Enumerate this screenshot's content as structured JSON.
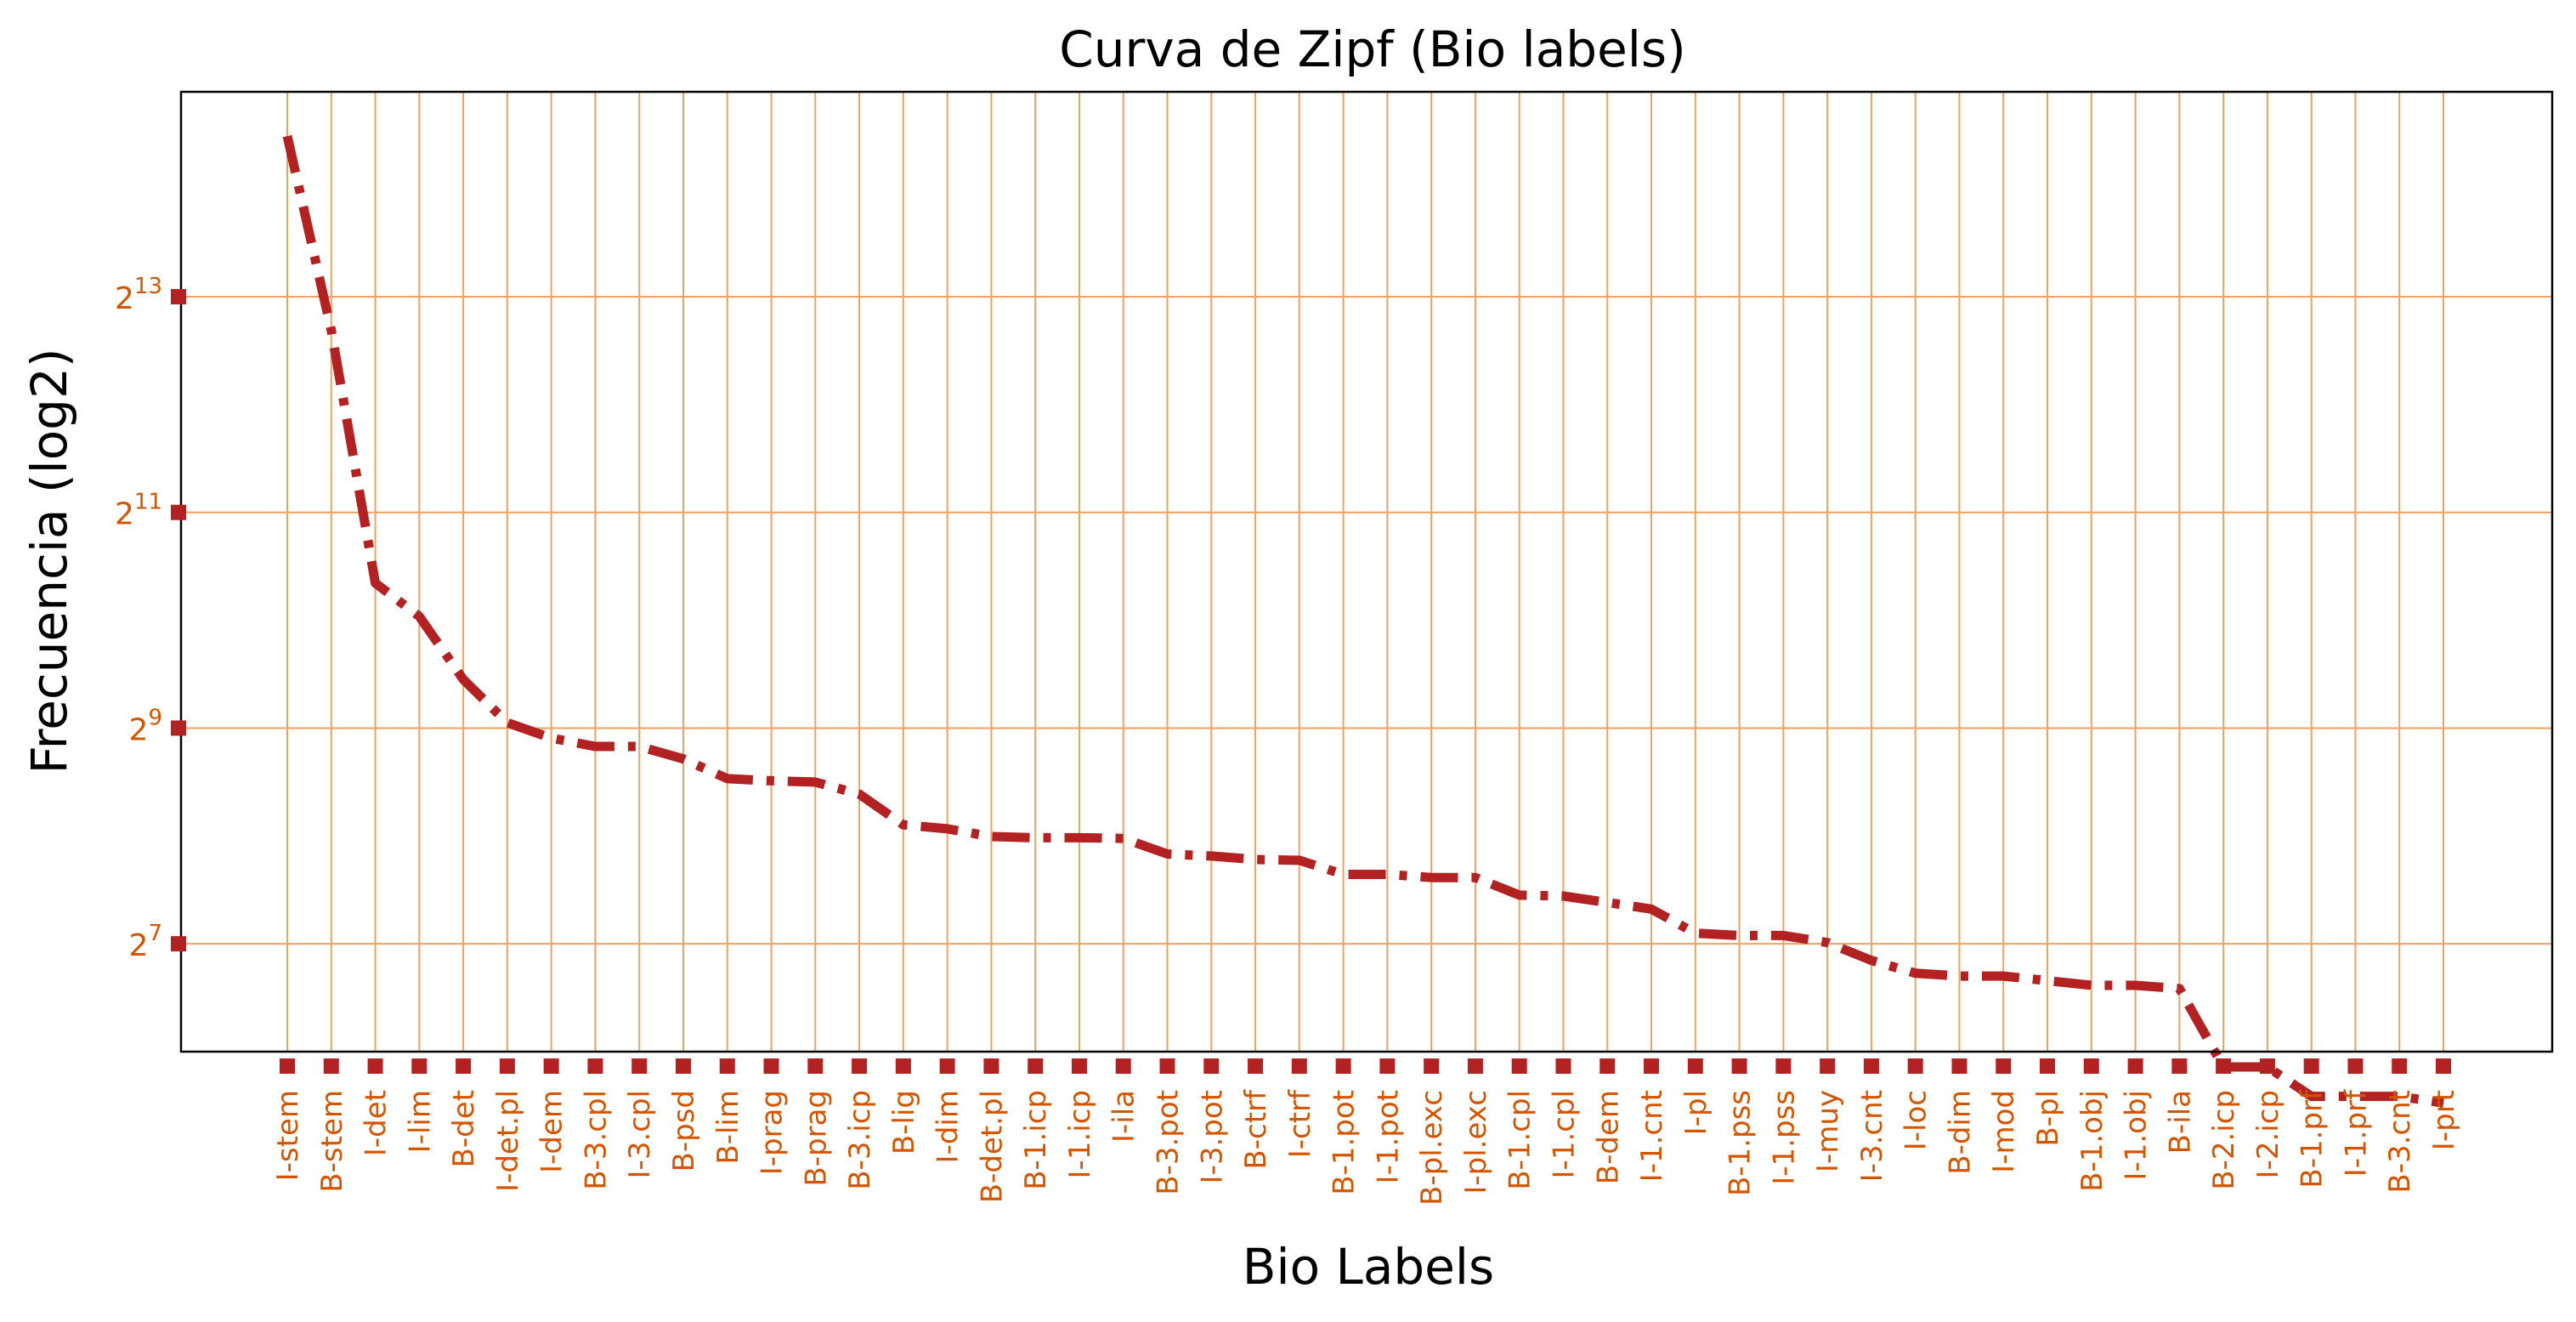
{
  "chart_data": {
    "type": "line",
    "title": "Curva de Zipf (Bio labels)",
    "xlabel": "Bio Labels",
    "ylabel": "Frecuencia (log2)",
    "yscale": "log2",
    "ylim_log2": [
      6.0,
      14.9
    ],
    "yticks": [
      {
        "exp": 7,
        "base": "2",
        "sup": "7"
      },
      {
        "exp": 9,
        "base": "2",
        "sup": "9"
      },
      {
        "exp": 11,
        "base": "2",
        "sup": "11"
      },
      {
        "exp": 13,
        "base": "2",
        "sup": "13"
      }
    ],
    "grid": true,
    "colors": {
      "line": "#b22222",
      "grid": "#f0a060",
      "tick_text": "#d45500",
      "tick_marker": "#b22222",
      "frame": "#000000"
    },
    "categories": [
      "I-stem",
      "B-stem",
      "I-det",
      "I-lim",
      "B-det",
      "I-det.pl",
      "I-dem",
      "B-3.cpl",
      "I-3.cpl",
      "B-psd",
      "B-lim",
      "I-prag",
      "B-prag",
      "B-3.icp",
      "B-lig",
      "I-dim",
      "B-det.pl",
      "B-1.icp",
      "I-1.icp",
      "I-ila",
      "B-3.pot",
      "I-3.pot",
      "B-ctrf",
      "I-ctrf",
      "B-1.pot",
      "I-1.pot",
      "B-pl.exc",
      "I-pl.exc",
      "B-1.cpl",
      "I-1.cpl",
      "B-dem",
      "I-1.cnt",
      "I-pl",
      "B-1.pss",
      "I-1.pss",
      "I-muy",
      "I-3.cnt",
      "I-loc",
      "B-dim",
      "I-mod",
      "B-pl",
      "B-1.obj",
      "I-1.obj",
      "B-ila",
      "B-2.icp",
      "I-2.icp",
      "B-1.prf",
      "I-1.prf",
      "B-3.cnt",
      "I-prt"
    ],
    "values": [
      23000,
      6600,
      1300,
      1050,
      700,
      530,
      480,
      455,
      455,
      420,
      370,
      365,
      362,
      335,
      275,
      268,
      255,
      253,
      253,
      252,
      228,
      225,
      220,
      219,
      200,
      200,
      196,
      196,
      175,
      174,
      167,
      160,
      137,
      135,
      135,
      129,
      115,
      106,
      104,
      104,
      101,
      98,
      98,
      96,
      58,
      58,
      48,
      48,
      48,
      46
    ]
  }
}
